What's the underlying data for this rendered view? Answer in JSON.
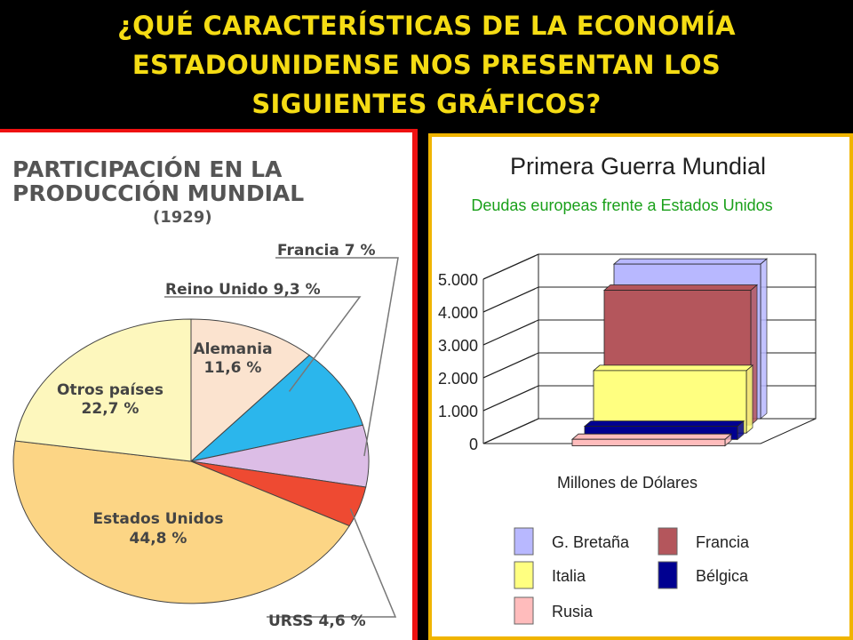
{
  "header": {
    "line1": "¿QUÉ CARACTERÍSTICAS  DE LA ECONOMÍA",
    "line2": "ESTADOUNIDENSE NOS PRESENTAN LOS",
    "line3": "SIGUIENTES GRÁFICOS?"
  },
  "chart_data": [
    {
      "type": "pie",
      "title": "PARTICIPACIÓN EN LA PRODUCCIÓN MUNDIAL",
      "title_line1": "PARTICIPACIÓN EN LA",
      "title_line2": "PRODUCCIÓN MUNDIAL",
      "subtitle": "(1929)",
      "labels": [
        "Alemania",
        "Reino Unido",
        "Francia",
        "URSS",
        "Estados Unidos",
        "Otros países"
      ],
      "values": [
        11.6,
        9.3,
        7,
        4.6,
        44.8,
        22.7
      ],
      "display_labels": [
        "11,6 %",
        "Reino Unido 9,3 %",
        "Francia 7 %",
        "URSS 4,6 %",
        "44,8 %",
        "22,7 %"
      ],
      "colors": [
        "#fbe3cf",
        "#2bb6ec",
        "#dcbde6",
        "#ee4a32",
        "#fcd585",
        "#fdf7bd"
      ]
    },
    {
      "type": "bar",
      "title": "Primera Guerra Mundial",
      "subtitle": "Deudas europeas frente a Estados Unidos",
      "xlabel": "Millones de Dólares",
      "ylabel": "",
      "yticks": [
        "5.000",
        "4.000",
        "3.000",
        "2.000",
        "1.000",
        "0"
      ],
      "ylim": [
        0,
        5000
      ],
      "categories": [
        "G. Bretaña",
        "Francia",
        "Italia",
        "Bélgica",
        "Rusia"
      ],
      "values": [
        4700,
        4100,
        1900,
        400,
        200
      ],
      "colors": [
        "#b8b8ff",
        "#b4565c",
        "#ffff80",
        "#000090",
        "#ffbcbc"
      ],
      "legend_position": "bottom"
    }
  ]
}
